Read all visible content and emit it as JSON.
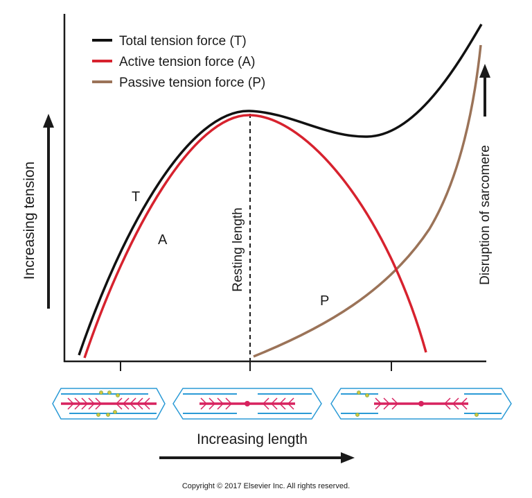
{
  "legend": [
    {
      "label": "Total tension force (T)",
      "color": "#111111"
    },
    {
      "label": "Active tension force (A)",
      "color": "#d7222e"
    },
    {
      "label": "Passive tension force (P)",
      "color": "#9b7358"
    }
  ],
  "curve_labels": {
    "total": "T",
    "active": "A",
    "passive": "P"
  },
  "y_axis_label": "Increasing tension",
  "x_axis_label": "Increasing length",
  "resting_length_label": "Resting length",
  "disruption_label": "Disruption of sarcomere",
  "copyright": "Copyright © 2017 Elsevier Inc. All rights reserved.",
  "colors": {
    "axis": "#1a1a1a",
    "total": "#111111",
    "active": "#d7222e",
    "passive": "#9b7358",
    "sarcomere_outline": "#2a9ad6",
    "myosin": "#d7225f",
    "actin": "#2a9ad6",
    "binding_site": "#d9c63a"
  },
  "sarcomere_states": [
    "shortened",
    "resting",
    "stretched"
  ]
}
